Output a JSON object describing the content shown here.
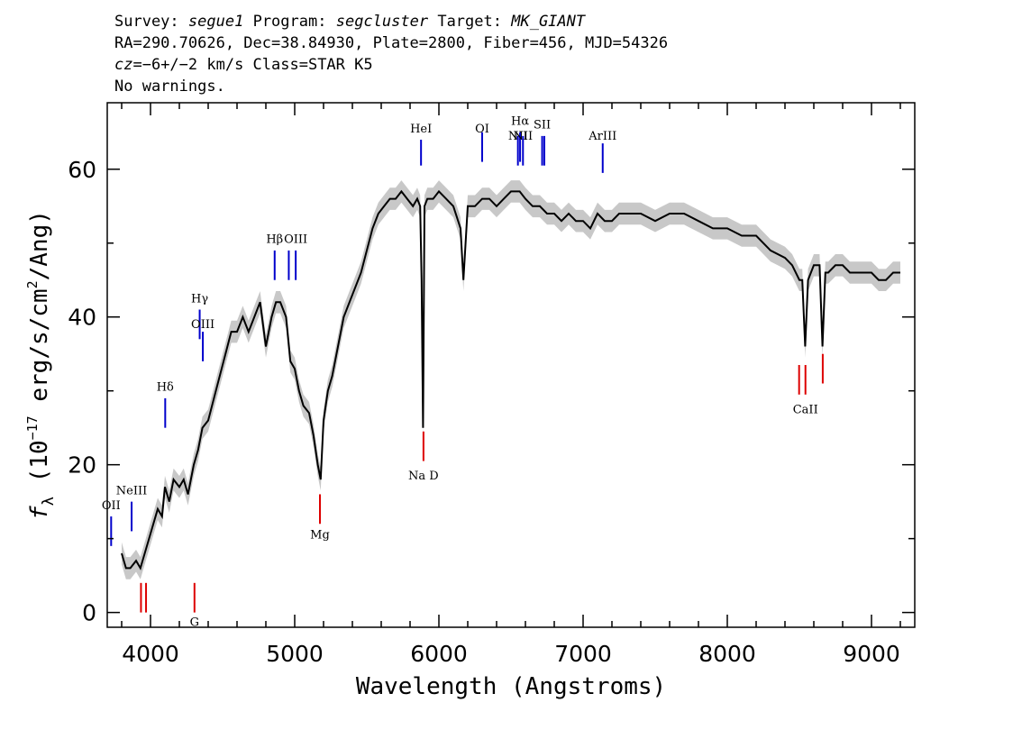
{
  "header": {
    "survey_label": "Survey:",
    "survey": "segue1",
    "program_label": "Program:",
    "program": "segcluster",
    "target_label": "Target:",
    "target": "MK_GIANT",
    "line2": "RA=290.70626, Dec=38.84930, Plate=2800, Fiber=456, MJD=54326",
    "cz_prefix": "cz",
    "cz_value": "=−6+/−2",
    "cz_suffix": " km/s Class=STAR K5",
    "line4": "No warnings."
  },
  "chart_data": {
    "type": "line",
    "title": "",
    "xlabel": "Wavelength (Angstroms)",
    "ylabel_main": "f",
    "ylabel_sub": "λ",
    "ylabel_text1": " (10",
    "ylabel_exp": "−17",
    "ylabel_text2": " erg/s/cm",
    "ylabel_exp2": "2",
    "ylabel_text3": "/Ang)",
    "xlim": [
      3700,
      9300
    ],
    "ylim": [
      -2,
      69
    ],
    "xticks": [
      4000,
      5000,
      6000,
      7000,
      8000,
      9000
    ],
    "xtick_labels": [
      "4000",
      "5000",
      "6000",
      "7000",
      "8000",
      "9000"
    ],
    "yticks": [
      0,
      20,
      40,
      60
    ],
    "ytick_labels": [
      "0",
      "20",
      "40",
      "60"
    ],
    "grid": false,
    "series": [
      {
        "color": "#000000",
        "x": [
          3800,
          3830,
          3860,
          3900,
          3930,
          3960,
          3990,
          4020,
          4050,
          4080,
          4100,
          4130,
          4160,
          4200,
          4230,
          4260,
          4300,
          4330,
          4360,
          4400,
          4440,
          4480,
          4520,
          4560,
          4600,
          4640,
          4680,
          4720,
          4760,
          4800,
          4840,
          4870,
          4900,
          4940,
          4970,
          5000,
          5030,
          5060,
          5100,
          5130,
          5160,
          5180,
          5200,
          5230,
          5260,
          5300,
          5340,
          5380,
          5420,
          5460,
          5500,
          5540,
          5580,
          5620,
          5660,
          5700,
          5740,
          5780,
          5820,
          5850,
          5870,
          5880,
          5890,
          5900,
          5920,
          5960,
          6000,
          6050,
          6100,
          6150,
          6170,
          6200,
          6250,
          6300,
          6350,
          6400,
          6450,
          6500,
          6560,
          6600,
          6650,
          6700,
          6750,
          6800,
          6850,
          6900,
          6950,
          7000,
          7050,
          7100,
          7150,
          7200,
          7250,
          7300,
          7400,
          7500,
          7600,
          7700,
          7800,
          7900,
          8000,
          8100,
          8200,
          8300,
          8400,
          8450,
          8500,
          8520,
          8540,
          8560,
          8600,
          8640,
          8660,
          8680,
          8700,
          8750,
          8800,
          8850,
          8900,
          8950,
          9000,
          9050,
          9100,
          9150,
          9200
        ],
        "y": [
          8,
          6,
          6,
          7,
          6,
          8,
          10,
          12,
          14,
          13,
          17,
          15,
          18,
          17,
          18,
          16,
          20,
          22,
          25,
          26,
          29,
          32,
          35,
          38,
          38,
          40,
          38,
          40,
          42,
          36,
          40,
          42,
          42,
          40,
          34,
          33,
          30,
          28,
          27,
          24,
          20,
          18,
          26,
          30,
          32,
          36,
          40,
          42,
          44,
          46,
          49,
          52,
          54,
          55,
          56,
          56,
          57,
          56,
          55,
          56,
          55,
          45,
          25,
          55,
          56,
          56,
          57,
          56,
          55,
          52,
          45,
          55,
          55,
          56,
          56,
          55,
          56,
          57,
          57,
          56,
          55,
          55,
          54,
          54,
          53,
          54,
          53,
          53,
          52,
          54,
          53,
          53,
          54,
          54,
          54,
          53,
          54,
          54,
          53,
          52,
          52,
          51,
          51,
          49,
          48,
          47,
          45,
          45,
          36,
          45,
          47,
          47,
          36,
          46,
          46,
          47,
          47,
          46,
          46,
          46,
          46,
          45,
          45,
          46,
          46
        ],
        "band": 1.5
      }
    ],
    "lines_blue": [
      {
        "label": "OII",
        "x": 3727,
        "y": 9,
        "h": 4,
        "ly": 14
      },
      {
        "label": "NeIII",
        "x": 3869,
        "y": 11,
        "h": 4,
        "ly": 16
      },
      {
        "label": "Hδ",
        "x": 4102,
        "y": 25,
        "h": 4,
        "ly": 30
      },
      {
        "label": "Hγ",
        "x": 4341,
        "y": 37,
        "h": 4,
        "ly": 42
      },
      {
        "label": "OIII",
        "x": 4363,
        "y": 34,
        "h": 4,
        "ly": 38.5
      },
      {
        "label": "Hβ",
        "x": 4861,
        "y": 45,
        "h": 4,
        "ly": 50
      },
      {
        "label": "OIII",
        "x": 4959,
        "y": 45,
        "h": 4,
        "ly": ""
      },
      {
        "label": "OIII",
        "x": 5007,
        "y": 45,
        "h": 4,
        "ly": 50
      },
      {
        "label": "HeI",
        "x": 5876,
        "y": 60.5,
        "h": 3.5,
        "ly": 65
      },
      {
        "label": "OI",
        "x": 6300,
        "y": 61,
        "h": 4,
        "ly": 65
      },
      {
        "label": "NII",
        "x": 6548,
        "y": 60.5,
        "h": 4,
        "ly": 64
      },
      {
        "label": "Hα",
        "x": 6563,
        "y": 61,
        "h": 4,
        "ly": 66
      },
      {
        "label": "NII",
        "x": 6583,
        "y": 60.5,
        "h": 4,
        "ly": 64
      },
      {
        "label": "SII",
        "x": 6716,
        "y": 60.5,
        "h": 4,
        "ly": 65.5
      },
      {
        "label": "SII",
        "x": 6731,
        "y": 60.5,
        "h": 4,
        "ly": ""
      },
      {
        "label": "ArIII",
        "x": 7136,
        "y": 59.5,
        "h": 4,
        "ly": 64
      }
    ],
    "lines_red": [
      {
        "label": "",
        "x": 3934,
        "y": 0,
        "h": 4,
        "ly": ""
      },
      {
        "label": "",
        "x": 3969,
        "y": 0,
        "h": 4,
        "ly": ""
      },
      {
        "label": "G",
        "x": 4305,
        "y": 0,
        "h": 4,
        "ly": -1.8
      },
      {
        "label": "Mg",
        "x": 5175,
        "y": 12,
        "h": 4,
        "ly": 10
      },
      {
        "label": "Na D",
        "x": 5893,
        "y": 20.5,
        "h": 4,
        "ly": 18
      },
      {
        "label": "",
        "x": 8498,
        "y": 29.5,
        "h": 4,
        "ly": ""
      },
      {
        "label": "CaII",
        "x": 8542,
        "y": 29.5,
        "h": 4,
        "ly": 27
      },
      {
        "label": "",
        "x": 8662,
        "y": 31,
        "h": 4,
        "ly": ""
      }
    ],
    "line_colors": {
      "emission": "#0000cc",
      "absorption": "#dd0000"
    }
  }
}
